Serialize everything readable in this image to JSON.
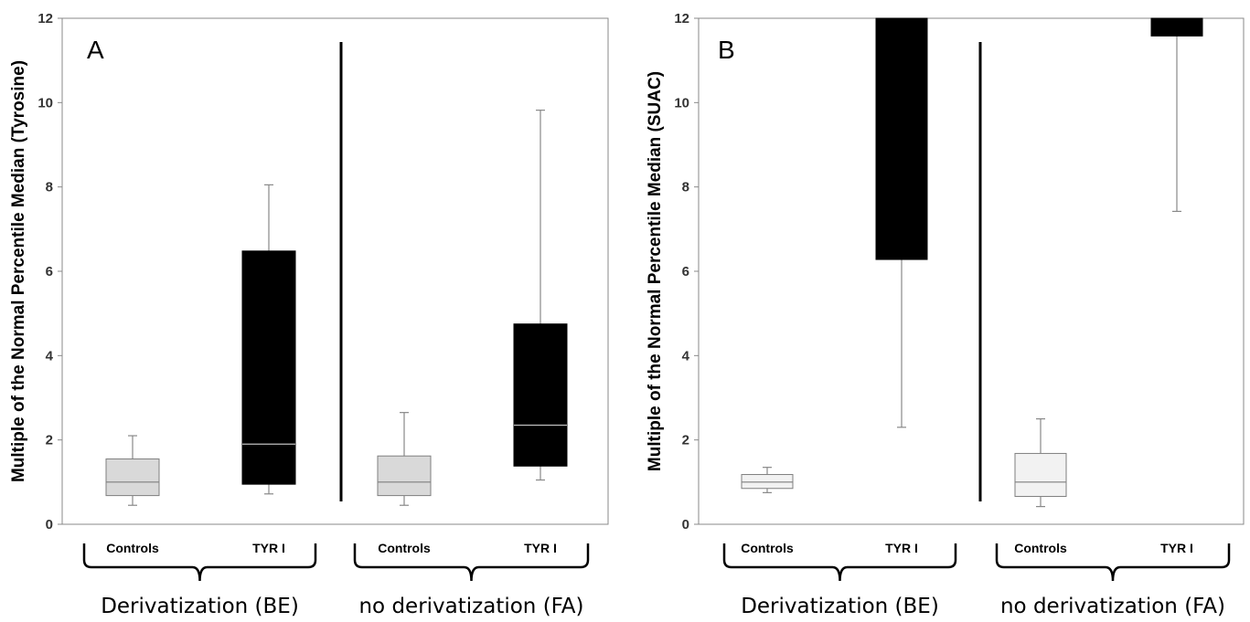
{
  "chart_data": [
    {
      "type": "box",
      "panel": "A",
      "ylabel": "Multiple of the Normal Percentile Median (Tyrosine)",
      "ylim": [
        0,
        12
      ],
      "yticks": [
        "0",
        "2",
        "4",
        "6",
        "8",
        "10",
        "12"
      ],
      "groups": [
        {
          "label": "Derivatization (BE)",
          "boxes": [
            {
              "category": "Controls",
              "color": "#d9d9d9",
              "min": 0.45,
              "q1": 0.68,
              "median": 1.0,
              "q3": 1.55,
              "max": 2.1
            },
            {
              "category": "TYR I",
              "color": "#000000",
              "min": 0.72,
              "q1": 0.95,
              "median": 1.9,
              "q3": 6.48,
              "max": 8.05
            }
          ]
        },
        {
          "label": "no derivatization (FA)",
          "boxes": [
            {
              "category": "Controls",
              "color": "#d9d9d9",
              "min": 0.45,
              "q1": 0.68,
              "median": 1.0,
              "q3": 1.62,
              "max": 2.65
            },
            {
              "category": "TYR I",
              "color": "#000000",
              "min": 1.05,
              "q1": 1.38,
              "median": 2.35,
              "q3": 4.75,
              "max": 9.82
            }
          ]
        }
      ]
    },
    {
      "type": "box",
      "panel": "B",
      "ylabel": "Multiple of the Normal Percentile Median (SUAC)",
      "ylim": [
        0,
        12
      ],
      "yticks": [
        "0",
        "2",
        "4",
        "6",
        "8",
        "10",
        "12"
      ],
      "groups": [
        {
          "label": "Derivatization (BE)",
          "boxes": [
            {
              "category": "Controls",
              "color": "#f2f2f2",
              "min": 0.75,
              "q1": 0.85,
              "median": 1.0,
              "q3": 1.18,
              "max": 1.35
            },
            {
              "category": "TYR I",
              "color": "#000000",
              "min": 2.3,
              "q1": 6.28,
              "median": null,
              "q3": 12,
              "max": 12
            }
          ]
        },
        {
          "label": "no derivatization (FA)",
          "boxes": [
            {
              "category": "Controls",
              "color": "#f2f2f2",
              "min": 0.42,
              "q1": 0.66,
              "median": 1.0,
              "q3": 1.68,
              "max": 2.5
            },
            {
              "category": "TYR I",
              "color": "#000000",
              "min": 7.42,
              "q1": 11.58,
              "median": null,
              "q3": 12,
              "max": 12
            }
          ]
        }
      ]
    }
  ]
}
